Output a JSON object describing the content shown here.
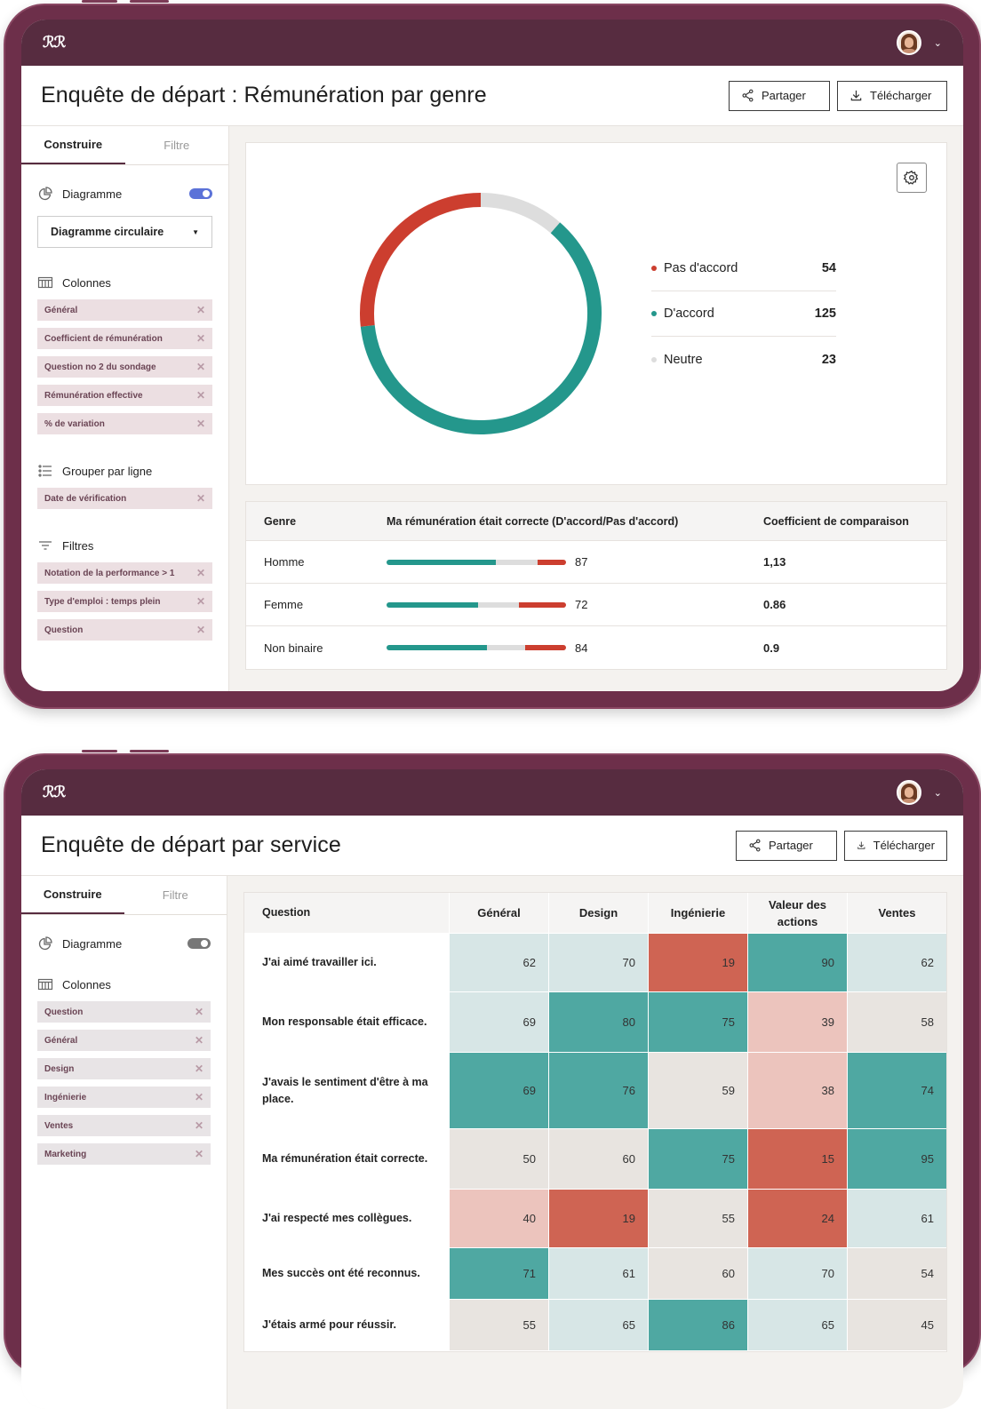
{
  "app": {
    "logo": "ℛℛ",
    "user_chevron": "⌄"
  },
  "actions": {
    "share": "Partager",
    "download": "Télécharger"
  },
  "colors": {
    "agree": "#24978c",
    "disagree": "#cc3e2f",
    "neutral": "#dddddd"
  },
  "screen1": {
    "title": "Enquête de départ : Rémunération par genre",
    "tabs": [
      "Construire",
      "Filtre"
    ],
    "chart_section": {
      "label": "Diagramme",
      "toggle_on": true,
      "chart_type": "Diagramme circulaire"
    },
    "columns": {
      "label": "Colonnes",
      "items": [
        "Général",
        "Coefficient de rémunération",
        "Question no 2 du sondage",
        "Rémunération effective",
        "% de variation"
      ]
    },
    "group": {
      "label": "Grouper par ligne",
      "items": [
        "Date de vérification"
      ]
    },
    "filters": {
      "label": "Filtres",
      "items": [
        "Notation de la performance > 1",
        "Type d'emploi : temps plein",
        "Question"
      ]
    },
    "legend": [
      {
        "label": "Pas d'accord",
        "value": "54",
        "color": "#cc3e2f"
      },
      {
        "label": "D'accord",
        "value": "125",
        "color": "#24978c"
      },
      {
        "label": "Neutre",
        "value": "23",
        "color": "#dddddd"
      }
    ],
    "table": {
      "headers": [
        "Genre",
        "Ma rémunération était correcte (D'accord/Pas d'accord)",
        "Coefficient de comparaison"
      ],
      "rows": [
        {
          "genre": "Homme",
          "agree": 0.61,
          "neutral": 0.23,
          "disagree": 0.16,
          "value": "87",
          "coef": "1,13"
        },
        {
          "genre": "Femme",
          "agree": 0.51,
          "neutral": 0.23,
          "disagree": 0.26,
          "value": "72",
          "coef": "0.86"
        },
        {
          "genre": "Non binaire",
          "agree": 0.56,
          "neutral": 0.21,
          "disagree": 0.23,
          "value": "84",
          "coef": "0.9"
        }
      ]
    }
  },
  "screen2": {
    "title": "Enquête de départ par service",
    "tabs": [
      "Construire",
      "Filtre"
    ],
    "chart_section": {
      "label": "Diagramme",
      "toggle_on": false
    },
    "columns": {
      "label": "Colonnes",
      "items": [
        "Question",
        "Général",
        "Design",
        "Ingénierie",
        "Ventes",
        "Marketing"
      ]
    },
    "heatmap": {
      "headers": [
        "Question",
        "Général",
        "Design",
        "Ingénierie",
        "Valeur des actions",
        "Ventes"
      ],
      "rows": [
        {
          "q": "J'ai aimé travailler ici.",
          "v": [
            "62",
            "70",
            "19",
            "90",
            "62"
          ],
          "c": [
            "#d7e6e6",
            "#d7e6e6",
            "#cf6453",
            "#4fa8a2",
            "#d7e6e6"
          ]
        },
        {
          "q": "Mon responsable était efficace.",
          "v": [
            "69",
            "80",
            "75",
            "39",
            "58"
          ],
          "c": [
            "#d7e6e6",
            "#4fa8a2",
            "#4fa8a2",
            "#ecc4bd",
            "#e8e4e0"
          ]
        },
        {
          "q": "J'avais le sentiment d'être à ma place.",
          "v": [
            "69",
            "76",
            "59",
            "38",
            "74"
          ],
          "c": [
            "#4fa8a2",
            "#4fa8a2",
            "#e8e4e0",
            "#ecc4bd",
            "#4fa8a2"
          ]
        },
        {
          "q": "Ma rémunération était correcte.",
          "v": [
            "50",
            "60",
            "75",
            "15",
            "95"
          ],
          "c": [
            "#e8e4e0",
            "#e8e4e0",
            "#4fa8a2",
            "#cf6453",
            "#4fa8a2"
          ]
        },
        {
          "q": "J'ai respecté mes collègues.",
          "v": [
            "40",
            "19",
            "55",
            "24",
            "61"
          ],
          "c": [
            "#ecc4bd",
            "#cf6453",
            "#e8e4e0",
            "#cf6453",
            "#d7e6e6"
          ]
        },
        {
          "q": "Mes succès ont été reconnus.",
          "v": [
            "71",
            "61",
            "60",
            "70",
            "54"
          ],
          "c": [
            "#4fa8a2",
            "#d7e6e6",
            "#e8e4e0",
            "#d7e6e6",
            "#e8e4e0"
          ]
        },
        {
          "q": "J'étais armé pour réussir.",
          "v": [
            "55",
            "65",
            "86",
            "65",
            "45"
          ],
          "c": [
            "#e8e4e0",
            "#d7e6e6",
            "#4fa8a2",
            "#d7e6e6",
            "#e8e4e0"
          ]
        }
      ]
    }
  }
}
